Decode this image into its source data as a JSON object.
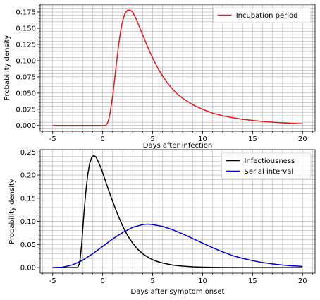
{
  "colors": {
    "incubation": "#e41a1c",
    "infectiousness": "#000000",
    "serial": "#0000cc",
    "grid": "#b0b0b0"
  },
  "chart_data": [
    {
      "type": "line",
      "xlabel": "Days after infection",
      "ylabel": "Probability density",
      "xlim": [
        -6.25,
        21.25
      ],
      "ylim": [
        -0.009,
        0.187
      ],
      "xticks": [
        -5,
        0,
        5,
        10,
        15,
        20
      ],
      "yticks": [
        0.0,
        0.025,
        0.05,
        0.075,
        0.1,
        0.125,
        0.15,
        0.175
      ],
      "ytick_labels": [
        "0.000",
        "0.025",
        "0.050",
        "0.075",
        "0.100",
        "0.125",
        "0.150",
        "0.175"
      ],
      "grid": true,
      "minor_ticks": true,
      "legend": "top-right",
      "series": [
        {
          "name": "Incubation period",
          "color_key": "incubation",
          "x": [
            -5,
            0,
            0.3,
            0.5,
            0.7,
            1.0,
            1.3,
            1.6,
            1.9,
            2.2,
            2.5,
            2.75,
            3.0,
            3.3,
            3.6,
            4.0,
            4.5,
            5.0,
            5.5,
            6.0,
            6.5,
            7.0,
            7.5,
            8.0,
            8.5,
            9.0,
            10.0,
            11.0,
            12.0,
            13.0,
            14.0,
            15.0,
            16.0,
            17.0,
            18.0,
            19.0,
            20.0
          ],
          "y": [
            0.0,
            0.0,
            0.0,
            0.004,
            0.015,
            0.045,
            0.085,
            0.125,
            0.155,
            0.172,
            0.178,
            0.178,
            0.175,
            0.166,
            0.155,
            0.14,
            0.121,
            0.104,
            0.089,
            0.076,
            0.065,
            0.056,
            0.048,
            0.042,
            0.037,
            0.032,
            0.025,
            0.019,
            0.015,
            0.012,
            0.0095,
            0.0077,
            0.0062,
            0.005,
            0.004,
            0.0033,
            0.0027
          ]
        }
      ]
    },
    {
      "type": "line",
      "xlabel": "Days after symptom onset",
      "ylabel": "Probability density",
      "xlim": [
        -6.25,
        21.25
      ],
      "ylim": [
        -0.012,
        0.255
      ],
      "xticks": [
        -5,
        0,
        5,
        10,
        15,
        20
      ],
      "yticks": [
        0.0,
        0.05,
        0.1,
        0.15,
        0.2,
        0.25
      ],
      "ytick_labels": [
        "0.00",
        "0.05",
        "0.10",
        "0.15",
        "0.20",
        "0.25"
      ],
      "grid": true,
      "minor_ticks": true,
      "legend": "top-right",
      "series": [
        {
          "name": "Infectiousness",
          "color_key": "infectiousness",
          "x": [
            -5,
            -2.5,
            -2.3,
            -2.1,
            -1.9,
            -1.7,
            -1.5,
            -1.3,
            -1.1,
            -0.9,
            -0.7,
            -0.5,
            -0.3,
            -0.1,
            0.0,
            0.3,
            0.6,
            1.0,
            1.5,
            2.0,
            2.5,
            3.0,
            3.5,
            4.0,
            4.5,
            5.0,
            5.5,
            6.0,
            7.0,
            8.0,
            9.0,
            10.0,
            12.0,
            15.0,
            20.0
          ],
          "y": [
            0.0,
            0.0,
            0.01,
            0.05,
            0.11,
            0.16,
            0.2,
            0.225,
            0.238,
            0.242,
            0.24,
            0.232,
            0.222,
            0.212,
            0.205,
            0.186,
            0.167,
            0.143,
            0.115,
            0.09,
            0.069,
            0.053,
            0.04,
            0.03,
            0.023,
            0.017,
            0.013,
            0.01,
            0.0055,
            0.0032,
            0.0018,
            0.001,
            0.0003,
            0.0,
            0.0
          ]
        },
        {
          "name": "Serial interval",
          "color_key": "serial",
          "x": [
            -5,
            -4,
            -3,
            -2,
            -1,
            0,
            1,
            2,
            3,
            4,
            4.5,
            5,
            6,
            7,
            8,
            9,
            10,
            11,
            12,
            13,
            14,
            15,
            16,
            17,
            18,
            19,
            20
          ],
          "y": [
            0.0,
            0.001,
            0.006,
            0.016,
            0.03,
            0.046,
            0.062,
            0.076,
            0.087,
            0.093,
            0.094,
            0.093,
            0.089,
            0.082,
            0.073,
            0.063,
            0.053,
            0.043,
            0.034,
            0.026,
            0.02,
            0.015,
            0.011,
            0.008,
            0.0055,
            0.0038,
            0.0026
          ]
        }
      ]
    }
  ]
}
